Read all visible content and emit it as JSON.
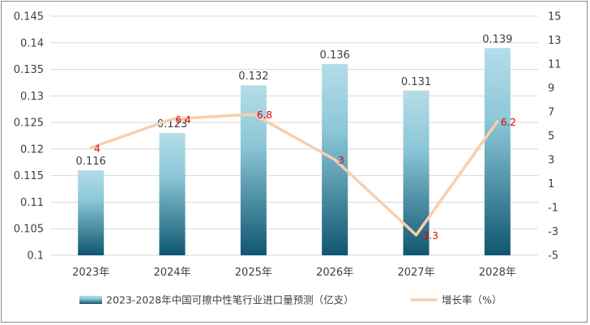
{
  "chart_data": {
    "type": "bar",
    "categories": [
      "2023年",
      "2024年",
      "2025年",
      "2026年",
      "2027年",
      "2028年"
    ],
    "series": [
      {
        "name": "2023-2028年中国可擦中性笔行业进口量预测（亿支）",
        "type": "bar",
        "axis": "left",
        "values": [
          0.116,
          0.123,
          0.132,
          0.136,
          0.131,
          0.139
        ],
        "labels": [
          "0.116",
          "0.123",
          "0.132",
          "0.136",
          "0.131",
          "0.139"
        ]
      },
      {
        "name": "增长率（%）",
        "type": "line",
        "axis": "right",
        "values": [
          4,
          6.4,
          6.8,
          3,
          -3.3,
          6.2
        ],
        "labels": [
          "4",
          "6.4",
          "6.8",
          "3",
          "-3.3",
          "6.2"
        ]
      }
    ],
    "y_left": {
      "range": [
        0.1,
        0.145
      ],
      "ticks": [
        "0.1",
        "0.105",
        "0.11",
        "0.115",
        "0.12",
        "0.125",
        "0.13",
        "0.135",
        "0.14",
        "0.145"
      ]
    },
    "y_right": {
      "range": [
        -5,
        15
      ],
      "ticks": [
        "-5",
        "-3",
        "-1",
        "1",
        "3",
        "5",
        "7",
        "9",
        "11",
        "13",
        "15"
      ]
    },
    "grid": true,
    "legend_position": "bottom",
    "colors": {
      "bar_top": "#b4dde8",
      "bar_bottom": "#0f5670",
      "line": "#f6cfae",
      "rate_label": "#e00000",
      "grid": "#d9d9d9"
    }
  }
}
